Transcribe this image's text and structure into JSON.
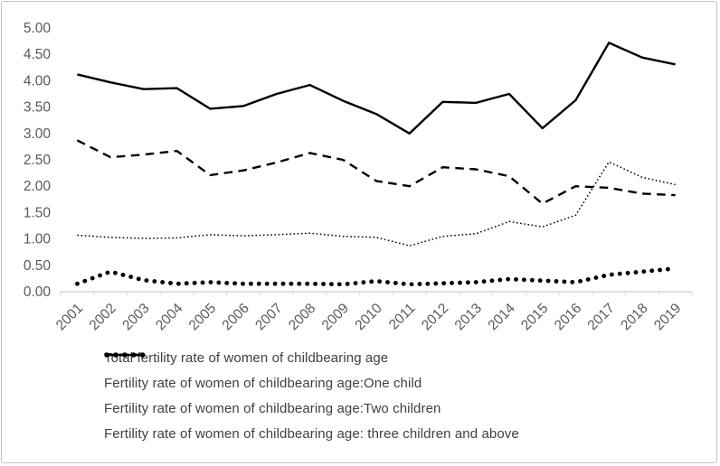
{
  "chart_data": {
    "type": "line",
    "title": "",
    "xlabel": "",
    "ylabel": "",
    "ylim": [
      0,
      5
    ],
    "grid": false,
    "legend_position": "bottom-left",
    "line_color": "#000000",
    "axis_label_color": "#595959",
    "y_ticks": [
      "0.00",
      "0.50",
      "1.00",
      "1.50",
      "2.00",
      "2.50",
      "3.00",
      "3.50",
      "4.00",
      "4.50",
      "5.00"
    ],
    "categories": [
      "2001",
      "2002",
      "2003",
      "2004",
      "2005",
      "2006",
      "2007",
      "2008",
      "2009",
      "2010",
      "2011",
      "2012",
      "2013",
      "2014",
      "2015",
      "2016",
      "2017",
      "2018",
      "2019"
    ],
    "series": [
      {
        "name": "Total fertility rate of women of childbearing age",
        "style": "solid",
        "values": [
          4.12,
          3.97,
          3.84,
          3.86,
          3.47,
          3.52,
          3.75,
          3.92,
          3.62,
          3.37,
          3.0,
          3.6,
          3.58,
          3.75,
          3.1,
          3.63,
          4.72,
          4.44,
          4.31
        ]
      },
      {
        "name": "Fertility rate of women of childbearing age:One child",
        "style": "dashed",
        "values": [
          2.87,
          2.55,
          2.6,
          2.67,
          2.21,
          2.3,
          2.45,
          2.63,
          2.5,
          2.1,
          2.0,
          2.36,
          2.32,
          2.19,
          1.67,
          2.0,
          1.97,
          1.86,
          1.83
        ]
      },
      {
        "name": "Fertility rate of women of childbearing age:Two children",
        "style": "fine-dotted",
        "values": [
          1.07,
          1.03,
          1.01,
          1.02,
          1.08,
          1.06,
          1.08,
          1.11,
          1.05,
          1.03,
          0.87,
          1.05,
          1.1,
          1.33,
          1.23,
          1.45,
          2.46,
          2.17,
          2.03
        ]
      },
      {
        "name": "Fertility rate of women of childbearing age: three children and above",
        "style": "bold-dotted",
        "values": [
          0.15,
          0.38,
          0.22,
          0.15,
          0.18,
          0.15,
          0.15,
          0.15,
          0.14,
          0.2,
          0.14,
          0.16,
          0.18,
          0.24,
          0.21,
          0.18,
          0.32,
          0.38,
          0.44
        ]
      }
    ]
  }
}
